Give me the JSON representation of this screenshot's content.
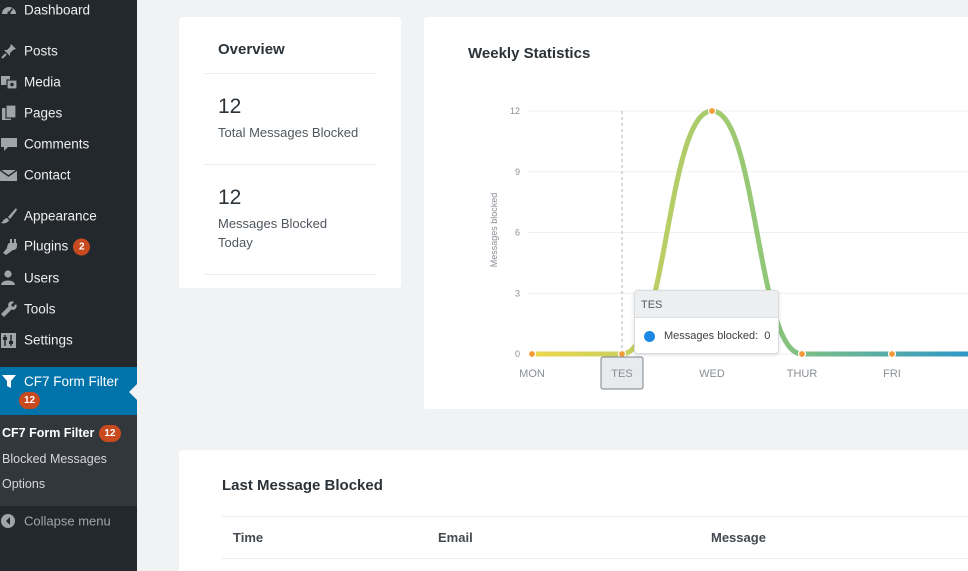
{
  "sidebar": {
    "items": [
      {
        "label": "Dashboard",
        "icon": "dashboard-icon"
      },
      {
        "label": "Posts",
        "icon": "pin-icon"
      },
      {
        "label": "Media",
        "icon": "media-icon"
      },
      {
        "label": "Pages",
        "icon": "pages-icon"
      },
      {
        "label": "Comments",
        "icon": "comment-icon"
      },
      {
        "label": "Contact",
        "icon": "mail-icon"
      },
      {
        "label": "Appearance",
        "icon": "brush-icon"
      },
      {
        "label": "Plugins",
        "icon": "plug-icon",
        "badge": "2"
      },
      {
        "label": "Users",
        "icon": "user-icon"
      },
      {
        "label": "Tools",
        "icon": "wrench-icon"
      },
      {
        "label": "Settings",
        "icon": "settings-icon"
      }
    ],
    "active": {
      "label": "CF7 Form Filter",
      "badge": "12",
      "icon": "filter-icon"
    },
    "submenu": [
      {
        "label": "CF7 Form Filter",
        "badge": "12"
      },
      {
        "label": "Blocked Messages"
      },
      {
        "label": "Options"
      }
    ],
    "collapse_label": "Collapse menu"
  },
  "overview": {
    "title": "Overview",
    "stats": [
      {
        "value": "12",
        "label": "Total Messages Blocked"
      },
      {
        "value": "12",
        "label": "Messages Blocked Today"
      }
    ]
  },
  "weekly": {
    "title": "Weekly Statistics",
    "tooltip": {
      "title": "TES",
      "series": "Messages blocked:",
      "value": "0"
    }
  },
  "chart_data": {
    "type": "area",
    "title": "Weekly Statistics",
    "ylabel": "Messages blocked",
    "categories": [
      "MON",
      "TES",
      "WED",
      "THUR",
      "FRI"
    ],
    "series": [
      {
        "name": "Messages blocked",
        "values": [
          0,
          0,
          12,
          0,
          0
        ]
      }
    ],
    "ylim": [
      0,
      12
    ],
    "yticks": [
      0,
      3,
      6,
      9,
      12
    ],
    "highlighted_category": "TES",
    "colors": {
      "gradient_start": "#f1d74c",
      "gradient_mid": "#8fc778",
      "gradient_end": "#2e97c9",
      "marker": "#f29b38",
      "tooltip_dot": "#1e88e5"
    }
  },
  "last_message": {
    "title": "Last Message Blocked",
    "columns": [
      "Time",
      "Email",
      "Message"
    ]
  },
  "colors": {
    "sidebar_bg": "#23282d",
    "active_bg": "#0073aa",
    "badge_bg": "#ca4a1f",
    "submenu_bg": "#32373c"
  }
}
